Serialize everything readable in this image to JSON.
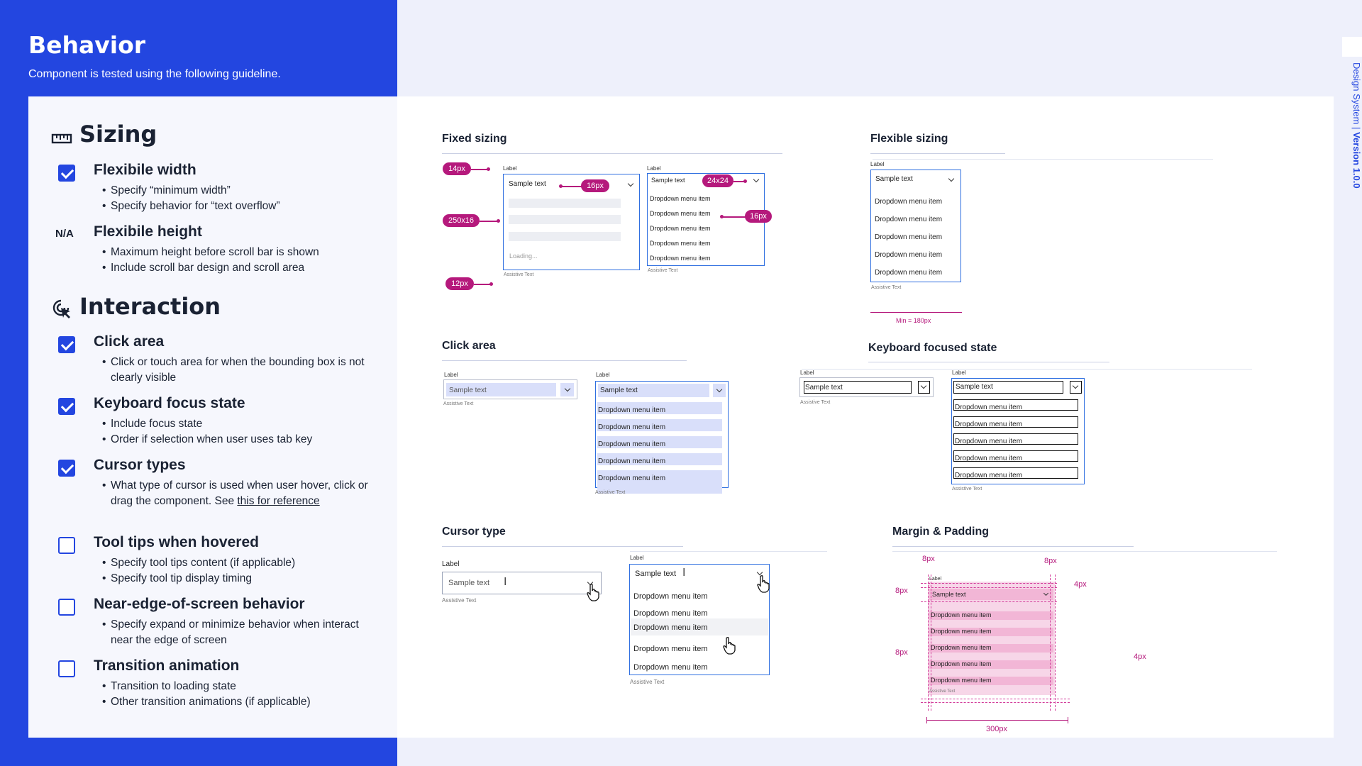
{
  "header": {
    "title": "Behavior",
    "subtitle": "Component is tested using the following guideline."
  },
  "side": {
    "brand": "Design System",
    "separator": "|",
    "version": "Version 1.0.0"
  },
  "sizing": {
    "heading": "Sizing",
    "icon": "ruler-icon",
    "items": [
      {
        "status": "checked",
        "title": "Flexibile width",
        "bullets": [
          "Specify “minimum width”",
          "Specify behavior for “text overflow”"
        ]
      },
      {
        "status": "N/A",
        "title": "Flexibile height",
        "bullets": [
          "Maximum height before scroll bar is shown",
          "Include scroll bar design and scroll area"
        ]
      }
    ]
  },
  "interaction": {
    "heading": "Interaction",
    "icon": "cursor-click-icon",
    "items": [
      {
        "status": "checked",
        "title": "Click area",
        "bullets": [
          "Click or touch area for when the bounding box is not clearly visible"
        ]
      },
      {
        "status": "checked",
        "title": "Keyboard focus state",
        "bullets": [
          "Include focus state",
          "Order if selection when user uses tab key"
        ]
      },
      {
        "status": "checked",
        "title": "Cursor types",
        "bullet_pre": "What type of cursor is used when user hover, click or drag the component. See ",
        "bullet_link": "this for reference"
      },
      {
        "status": "unchecked",
        "title": "Tool tips when hovered",
        "bullets": [
          "Specify tool tips content (if applicable)",
          "Specify tool tip display timing"
        ]
      },
      {
        "status": "unchecked",
        "title": "Near-edge-of-screen behavior",
        "bullets": [
          "Specify expand or minimize behavior when interact near the edge of screen"
        ]
      },
      {
        "status": "unchecked",
        "title": "Transition animation",
        "bullets": [
          "Transition to loading state",
          "Other transition animations (if applicable)"
        ]
      }
    ]
  },
  "demos": {
    "common": {
      "label": "Label",
      "sample": "Sample text",
      "assistive": "Assistive Text",
      "menu_item": "Dropdown menu item",
      "loading": "Loading..."
    },
    "fixed": {
      "heading": "Fixed sizing",
      "pills": [
        "14px",
        "250x16",
        "12px",
        "16px",
        "24x24",
        "16px"
      ]
    },
    "flexible": {
      "heading": "Flexible sizing",
      "min": "Min = 180px"
    },
    "click": {
      "heading": "Click area"
    },
    "keyboard": {
      "heading": "Keyboard focused state"
    },
    "cursor": {
      "heading": "Cursor type"
    },
    "margin": {
      "heading": "Margin & Padding",
      "annotations": [
        "8px",
        "8px",
        "8px",
        "4px",
        "8px",
        "4px",
        "300px"
      ]
    }
  },
  "colors": {
    "accent": "#2346e0",
    "annotation": "#b5197c",
    "focus": "#2f6fe0"
  }
}
